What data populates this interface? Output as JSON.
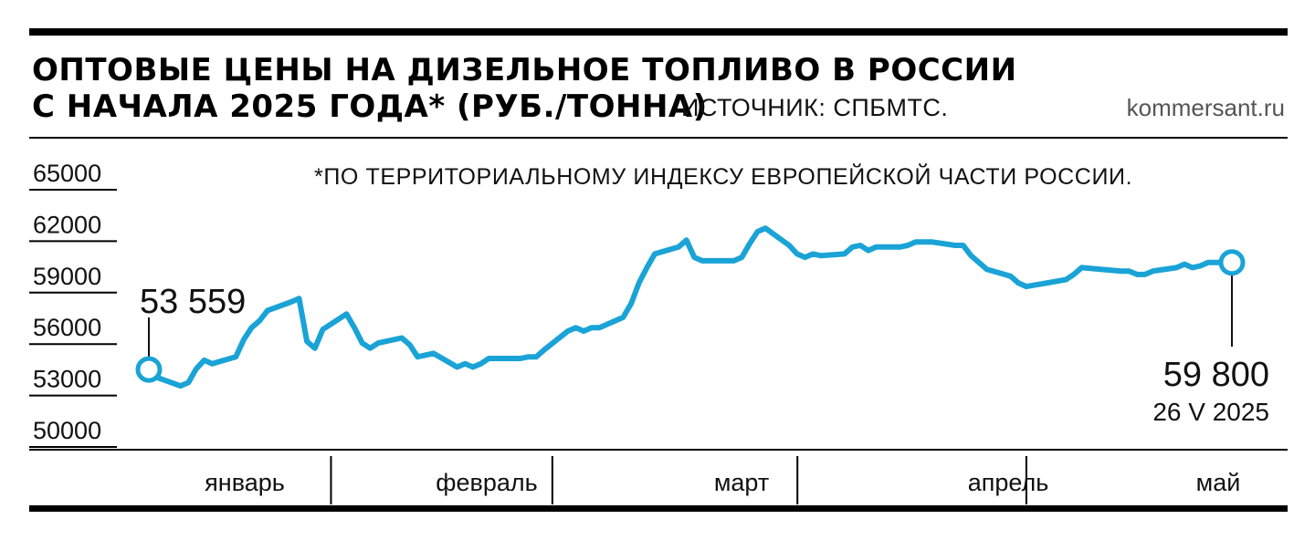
{
  "header": {
    "title_line1": "ОПТОВЫЕ ЦЕНЫ НА ДИЗЕЛЬНОЕ ТОПЛИВО В РОССИИ",
    "title_line2": "С НАЧАЛА 2025 ГОДА* (РУБ./ТОННА)",
    "source": "ИСТОЧНИК: СПБМТС.",
    "site": "kommersant.ru"
  },
  "note": "*ПО ТЕРРИТОРИАЛЬНОМУ ИНДЕКСУ ЕВРОПЕЙСКОЙ ЧАСТИ РОССИИ.",
  "colors": {
    "line": "#1aa3d6",
    "text": "#111111",
    "rules": "#000000"
  },
  "chart_data": {
    "type": "line",
    "title": "ОПТОВЫЕ ЦЕНЫ НА ДИЗЕЛЬНОЕ ТОПЛИВО В РОССИИ С НАЧАЛА 2025 ГОДА* (РУБ./ТОННА)",
    "xlabel": "",
    "ylabel": "",
    "ylim": [
      50000,
      65000
    ],
    "yticks": [
      50000,
      53000,
      56000,
      59000,
      62000,
      65000
    ],
    "grid": false,
    "months": [
      "январь",
      "февраль",
      "март",
      "апрель",
      "май"
    ],
    "x": [
      "2025-01-09",
      "2025-01-10",
      "2025-01-13",
      "2025-01-14",
      "2025-01-15",
      "2025-01-16",
      "2025-01-17",
      "2025-01-20",
      "2025-01-21",
      "2025-01-22",
      "2025-01-23",
      "2025-01-24",
      "2025-01-27",
      "2025-01-28",
      "2025-01-29",
      "2025-01-30",
      "2025-01-31",
      "2025-02-03",
      "2025-02-04",
      "2025-02-05",
      "2025-02-06",
      "2025-02-07",
      "2025-02-10",
      "2025-02-11",
      "2025-02-12",
      "2025-02-13",
      "2025-02-14",
      "2025-02-17",
      "2025-02-18",
      "2025-02-19",
      "2025-02-20",
      "2025-02-21",
      "2025-02-24",
      "2025-02-25",
      "2025-02-26",
      "2025-02-27",
      "2025-02-28",
      "2025-03-03",
      "2025-03-04",
      "2025-03-05",
      "2025-03-06",
      "2025-03-07",
      "2025-03-10",
      "2025-03-11",
      "2025-03-12",
      "2025-03-13",
      "2025-03-14",
      "2025-03-17",
      "2025-03-18",
      "2025-03-19",
      "2025-03-20",
      "2025-03-21",
      "2025-03-24",
      "2025-03-25",
      "2025-03-26",
      "2025-03-27",
      "2025-03-28",
      "2025-03-31",
      "2025-04-01",
      "2025-04-02",
      "2025-04-03",
      "2025-04-04",
      "2025-04-07",
      "2025-04-08",
      "2025-04-09",
      "2025-04-10",
      "2025-04-11",
      "2025-04-14",
      "2025-04-15",
      "2025-04-16",
      "2025-04-17",
      "2025-04-18",
      "2025-04-21",
      "2025-04-22",
      "2025-04-23",
      "2025-04-24",
      "2025-04-25",
      "2025-04-28",
      "2025-04-29",
      "2025-04-30",
      "2025-05-05",
      "2025-05-06",
      "2025-05-07",
      "2025-05-12",
      "2025-05-13",
      "2025-05-14",
      "2025-05-15",
      "2025-05-16",
      "2025-05-19",
      "2025-05-20",
      "2025-05-21",
      "2025-05-22",
      "2025-05-23",
      "2025-05-26"
    ],
    "series": [
      {
        "values": [
          53559,
          53100,
          52600,
          52800,
          53600,
          54100,
          53900,
          54300,
          55300,
          56000,
          56400,
          57000,
          57500,
          57700,
          55200,
          54800,
          55900,
          56800,
          56000,
          55100,
          54800,
          55100,
          55400,
          55000,
          54300,
          54400,
          54500,
          53700,
          53900,
          53700,
          53900,
          54200,
          54200,
          54200,
          54300,
          54300,
          54700,
          55800,
          56000,
          55800,
          56000,
          56000,
          56600,
          57400,
          58600,
          59500,
          60300,
          60700,
          61100,
          60100,
          59900,
          59900,
          59900,
          60100,
          60900,
          61600,
          61800,
          60800,
          60300,
          60100,
          60300,
          60200,
          60300,
          60700,
          60800,
          60500,
          60700,
          60700,
          60800,
          61000,
          61000,
          61000,
          60800,
          60800,
          60200,
          59800,
          59400,
          59000,
          58600,
          58400,
          58800,
          59100,
          59500,
          59300,
          59300,
          59100,
          59100,
          59300,
          59500,
          59700,
          59500,
          59600,
          59800,
          59800
        ]
      }
    ],
    "annotations": [
      {
        "label": "53 559",
        "x": "2025-01-09",
        "y": 53559
      },
      {
        "label": "59 800",
        "date_label": "26 V 2025",
        "x": "2025-05-26",
        "y": 59800
      }
    ]
  }
}
